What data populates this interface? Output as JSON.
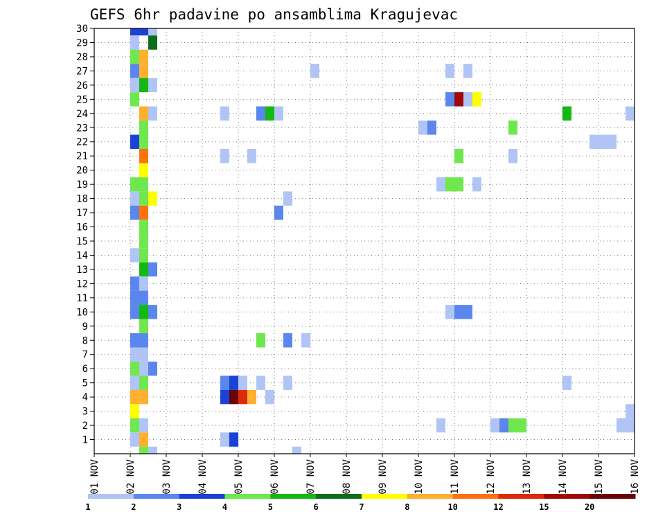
{
  "chart_data": {
    "type": "heatmap",
    "title": "GEFS 6hr padavine po ansamblima Kragujevac",
    "x_tick_labels": [
      "01 NOV",
      "02 NOV",
      "03 NOV",
      "04 NOV",
      "05 NOV",
      "06 NOV",
      "07 NOV",
      "08 NOV",
      "09 NOV",
      "10 NOV",
      "11 NOV",
      "12 NOV",
      "13 NOV",
      "14 NOV",
      "15 NOV",
      "16 NOV"
    ],
    "x_range_days": [
      1,
      16
    ],
    "y_tick_labels": [
      "1",
      "2",
      "3",
      "4",
      "5",
      "6",
      "7",
      "8",
      "9",
      "10",
      "11",
      "12",
      "13",
      "14",
      "15",
      "16",
      "17",
      "18",
      "19",
      "20",
      "21",
      "22",
      "23",
      "24",
      "25",
      "26",
      "27",
      "28",
      "29",
      "30"
    ],
    "y_range": [
      0,
      30
    ],
    "grid": true,
    "legend": {
      "placement": "bottom",
      "labels": [
        "1",
        "2",
        "3",
        "4",
        "5",
        "6",
        "7",
        "8",
        "10",
        "12",
        "15",
        "20"
      ],
      "colors": [
        "#b0c4f5",
        "#5a86ee",
        "#1a43d6",
        "#6ee84e",
        "#14b814",
        "#0c6e1c",
        "#ffff00",
        "#ffb030",
        "#ff7010",
        "#dc2a0a",
        "#a00808",
        "#6a0404"
      ]
    },
    "cells": [
      [
        2,
        30,
        "#1a43d6"
      ],
      [
        2.25,
        30,
        "#1a43d6"
      ],
      [
        2.5,
        30,
        "#b0c4f5"
      ],
      [
        2,
        29,
        "#b0c4f5"
      ],
      [
        2.5,
        29,
        "#0c6e1c"
      ],
      [
        2,
        28,
        "#6ee84e"
      ],
      [
        2.25,
        28,
        "#ffb030"
      ],
      [
        2,
        27,
        "#5a86ee"
      ],
      [
        2.25,
        27,
        "#ffb030"
      ],
      [
        7,
        27,
        "#b0c4f5"
      ],
      [
        10.75,
        27,
        "#b0c4f5"
      ],
      [
        11.25,
        27,
        "#b0c4f5"
      ],
      [
        2,
        26,
        "#b0c4f5"
      ],
      [
        2.25,
        26,
        "#14b814"
      ],
      [
        2.5,
        26,
        "#b0c4f5"
      ],
      [
        2,
        25,
        "#6ee84e"
      ],
      [
        10.75,
        25,
        "#5a86ee"
      ],
      [
        11,
        25,
        "#a00808"
      ],
      [
        11.25,
        25,
        "#b0c4f5"
      ],
      [
        11.5,
        25,
        "#ffff00"
      ],
      [
        2.25,
        24,
        "#ffb030"
      ],
      [
        2.5,
        24,
        "#b0c4f5"
      ],
      [
        4.5,
        24,
        "#b0c4f5"
      ],
      [
        5.5,
        24,
        "#5a86ee"
      ],
      [
        5.75,
        24,
        "#14b814"
      ],
      [
        6,
        24,
        "#b0c4f5"
      ],
      [
        14,
        24,
        "#14b814"
      ],
      [
        15.75,
        24,
        "#b0c4f5"
      ],
      [
        2.25,
        23,
        "#6ee84e"
      ],
      [
        10,
        23,
        "#b0c4f5"
      ],
      [
        10.25,
        23,
        "#5a86ee"
      ],
      [
        12.5,
        23,
        "#6ee84e"
      ],
      [
        2,
        22,
        "#1a43d6"
      ],
      [
        2.25,
        22,
        "#6ee84e"
      ],
      [
        14.75,
        22,
        "#b0c4f5"
      ],
      [
        15,
        22,
        "#b0c4f5"
      ],
      [
        15.25,
        22,
        "#b0c4f5"
      ],
      [
        2.25,
        21,
        "#ff7010"
      ],
      [
        4.5,
        21,
        "#b0c4f5"
      ],
      [
        5.25,
        21,
        "#b0c4f5"
      ],
      [
        11,
        21,
        "#6ee84e"
      ],
      [
        12.5,
        21,
        "#b0c4f5"
      ],
      [
        2.25,
        20,
        "#ffff00"
      ],
      [
        2,
        19,
        "#6ee84e"
      ],
      [
        2.25,
        19,
        "#6ee84e"
      ],
      [
        10.5,
        19,
        "#b0c4f5"
      ],
      [
        10.75,
        19,
        "#6ee84e"
      ],
      [
        11,
        19,
        "#6ee84e"
      ],
      [
        11.5,
        19,
        "#b0c4f5"
      ],
      [
        2,
        18,
        "#b0c4f5"
      ],
      [
        2.25,
        18,
        "#6ee84e"
      ],
      [
        2.5,
        18,
        "#ffff00"
      ],
      [
        6.25,
        18,
        "#b0c4f5"
      ],
      [
        2,
        17,
        "#5a86ee"
      ],
      [
        2.25,
        17,
        "#ff7010"
      ],
      [
        6,
        17,
        "#5a86ee"
      ],
      [
        2.25,
        16,
        "#6ee84e"
      ],
      [
        2.25,
        15,
        "#6ee84e"
      ],
      [
        2,
        14,
        "#b0c4f5"
      ],
      [
        2.25,
        14,
        "#6ee84e"
      ],
      [
        2.25,
        13,
        "#14b814"
      ],
      [
        2.5,
        13,
        "#5a86ee"
      ],
      [
        2,
        12,
        "#5a86ee"
      ],
      [
        2.25,
        12,
        "#b0c4f5"
      ],
      [
        2,
        11,
        "#5a86ee"
      ],
      [
        2.25,
        11,
        "#5a86ee"
      ],
      [
        2,
        10,
        "#5a86ee"
      ],
      [
        2.25,
        10,
        "#14b814"
      ],
      [
        2.5,
        10,
        "#5a86ee"
      ],
      [
        10.75,
        10,
        "#b0c4f5"
      ],
      [
        11,
        10,
        "#5a86ee"
      ],
      [
        11.25,
        10,
        "#5a86ee"
      ],
      [
        2.25,
        9,
        "#6ee84e"
      ],
      [
        2,
        8,
        "#5a86ee"
      ],
      [
        2.25,
        8,
        "#5a86ee"
      ],
      [
        5.5,
        8,
        "#6ee84e"
      ],
      [
        6.25,
        8,
        "#5a86ee"
      ],
      [
        6.75,
        8,
        "#b0c4f5"
      ],
      [
        2,
        7,
        "#b0c4f5"
      ],
      [
        2.25,
        7,
        "#b0c4f5"
      ],
      [
        2,
        6,
        "#6ee84e"
      ],
      [
        2.25,
        6,
        "#b0c4f5"
      ],
      [
        2.5,
        6,
        "#5a86ee"
      ],
      [
        2,
        5,
        "#b0c4f5"
      ],
      [
        2.25,
        5,
        "#6ee84e"
      ],
      [
        4.5,
        5,
        "#5a86ee"
      ],
      [
        4.75,
        5,
        "#1a43d6"
      ],
      [
        5,
        5,
        "#b0c4f5"
      ],
      [
        5.5,
        5,
        "#b0c4f5"
      ],
      [
        6.25,
        5,
        "#b0c4f5"
      ],
      [
        14,
        5,
        "#b0c4f5"
      ],
      [
        2,
        4,
        "#ffb030"
      ],
      [
        2.25,
        4,
        "#ffb030"
      ],
      [
        4.5,
        4,
        "#1a43d6"
      ],
      [
        4.75,
        4,
        "#6a0404"
      ],
      [
        5,
        4,
        "#dc2a0a"
      ],
      [
        5.25,
        4,
        "#ffb030"
      ],
      [
        5.75,
        4,
        "#b0c4f5"
      ],
      [
        2,
        3,
        "#ffff00"
      ],
      [
        15.75,
        3,
        "#b0c4f5"
      ],
      [
        2,
        2,
        "#6ee84e"
      ],
      [
        2.25,
        2,
        "#b0c4f5"
      ],
      [
        10.5,
        2,
        "#b0c4f5"
      ],
      [
        12,
        2,
        "#b0c4f5"
      ],
      [
        12.25,
        2,
        "#5a86ee"
      ],
      [
        12.5,
        2,
        "#6ee84e"
      ],
      [
        12.75,
        2,
        "#6ee84e"
      ],
      [
        15.5,
        2,
        "#b0c4f5"
      ],
      [
        15.75,
        2,
        "#b0c4f5"
      ],
      [
        2,
        1,
        "#b0c4f5"
      ],
      [
        2.25,
        1,
        "#ffb030"
      ],
      [
        4.5,
        1,
        "#b0c4f5"
      ],
      [
        4.75,
        1,
        "#1a43d6"
      ],
      [
        2.25,
        0,
        "#6ee84e"
      ],
      [
        2.5,
        0,
        "#b0c4f5"
      ],
      [
        6.5,
        0,
        "#b0c4f5"
      ]
    ]
  }
}
